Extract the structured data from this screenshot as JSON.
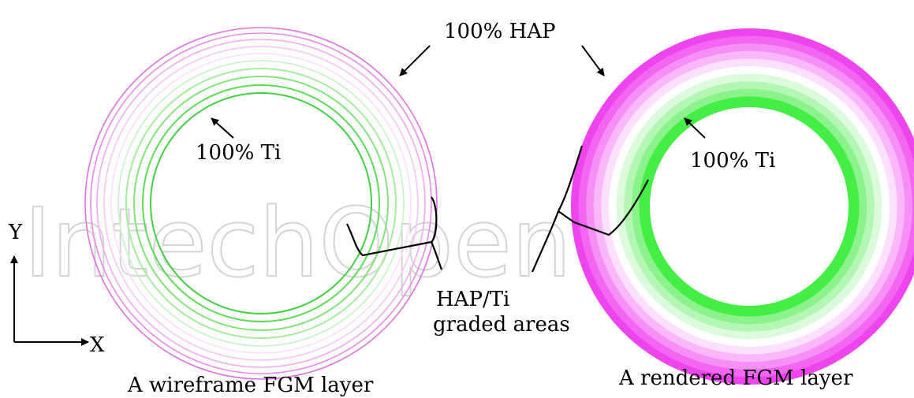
{
  "watermark": "IntechOpen",
  "labels": {
    "hap_top": "100% HAP",
    "ti_left": "100% Ti",
    "ti_right": "100% Ti",
    "graded_line1": "HAP/Ti",
    "graded_line2": "graded areas",
    "axis_y": "Y",
    "axis_x": "X",
    "caption_left": "A wireframe FGM layer",
    "caption_right": "A rendered FGM layer"
  },
  "colors": {
    "hap": "#ee44ee",
    "ti": "#44ee44",
    "background": "#ffffff"
  },
  "gradient_bands": [
    {
      "material": "100% HAP",
      "color": "#ee44ee"
    },
    {
      "material": "HAP/Ti",
      "color": "#f266f2"
    },
    {
      "material": "HAP/Ti",
      "color": "#f690f6"
    },
    {
      "material": "HAP/Ti",
      "color": "#fab8fa"
    },
    {
      "material": "HAP/Ti",
      "color": "#fde0fd"
    },
    {
      "material": "HAP/Ti",
      "color": "#ffffff"
    },
    {
      "material": "HAP/Ti",
      "color": "#dcfadc"
    },
    {
      "material": "HAP/Ti",
      "color": "#b4f6b4"
    },
    {
      "material": "HAP/Ti",
      "color": "#8cf28c"
    },
    {
      "material": "100% Ti",
      "color": "#44ee44"
    }
  ],
  "wire_colors": [
    "#e070e0",
    "#e98ae9",
    "#f1a9f1",
    "#f6c6f6",
    "#fadefa",
    "#c8f0c8",
    "#a6ec9e",
    "#82e47a",
    "#5cdc58",
    "#44d044"
  ]
}
